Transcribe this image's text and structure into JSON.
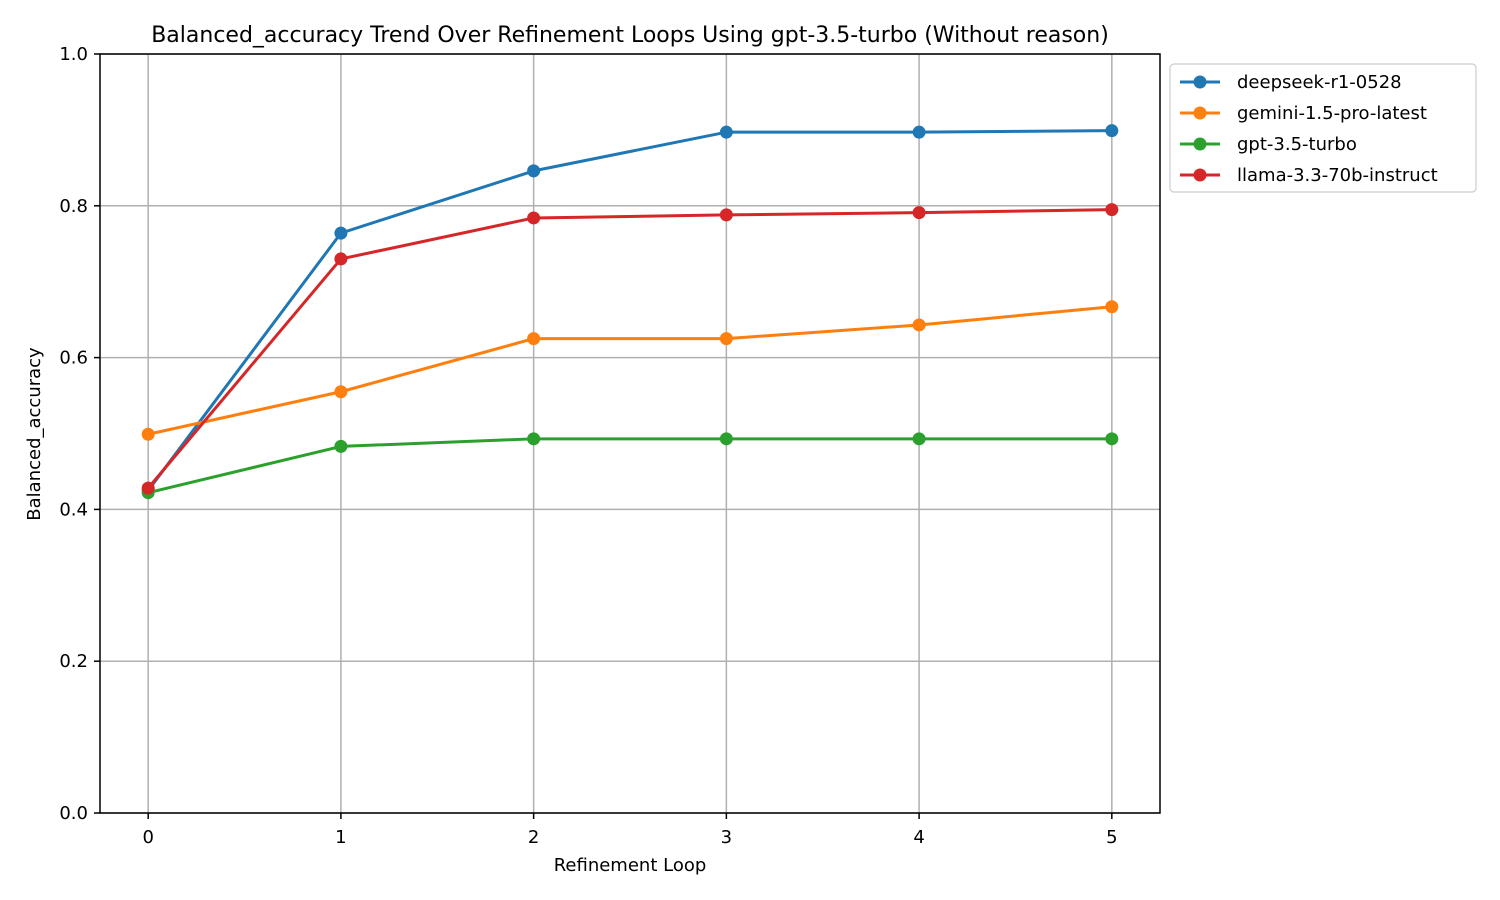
{
  "chart_data": {
    "type": "line",
    "title": "Balanced_accuracy Trend Over Refinement Loops Using gpt-3.5-turbo (Without reason)",
    "xlabel": "Refinement Loop",
    "ylabel": "Balanced_accuracy",
    "x": [
      0,
      1,
      2,
      3,
      4,
      5
    ],
    "xticks": [
      "0",
      "1",
      "2",
      "3",
      "4",
      "5"
    ],
    "xlim": [
      -0.25,
      5.25
    ],
    "ylim": [
      0.0,
      1.0
    ],
    "yticks": [
      "0.0",
      "0.2",
      "0.4",
      "0.6",
      "0.8",
      "1.0"
    ],
    "grid": true,
    "legend_position": "outside upper right",
    "series": [
      {
        "name": "deepseek-r1-0528",
        "color": "#1f77b4",
        "values": [
          0.425,
          0.764,
          0.846,
          0.897,
          0.897,
          0.899
        ]
      },
      {
        "name": "gemini-1.5-pro-latest",
        "color": "#ff7f0e",
        "values": [
          0.499,
          0.555,
          0.625,
          0.625,
          0.643,
          0.667
        ]
      },
      {
        "name": "gpt-3.5-turbo",
        "color": "#2ca02c",
        "values": [
          0.422,
          0.483,
          0.493,
          0.493,
          0.493,
          0.493
        ]
      },
      {
        "name": "llama-3.3-70b-instruct",
        "color": "#d62728",
        "values": [
          0.428,
          0.73,
          0.784,
          0.788,
          0.791,
          0.795
        ]
      }
    ]
  }
}
